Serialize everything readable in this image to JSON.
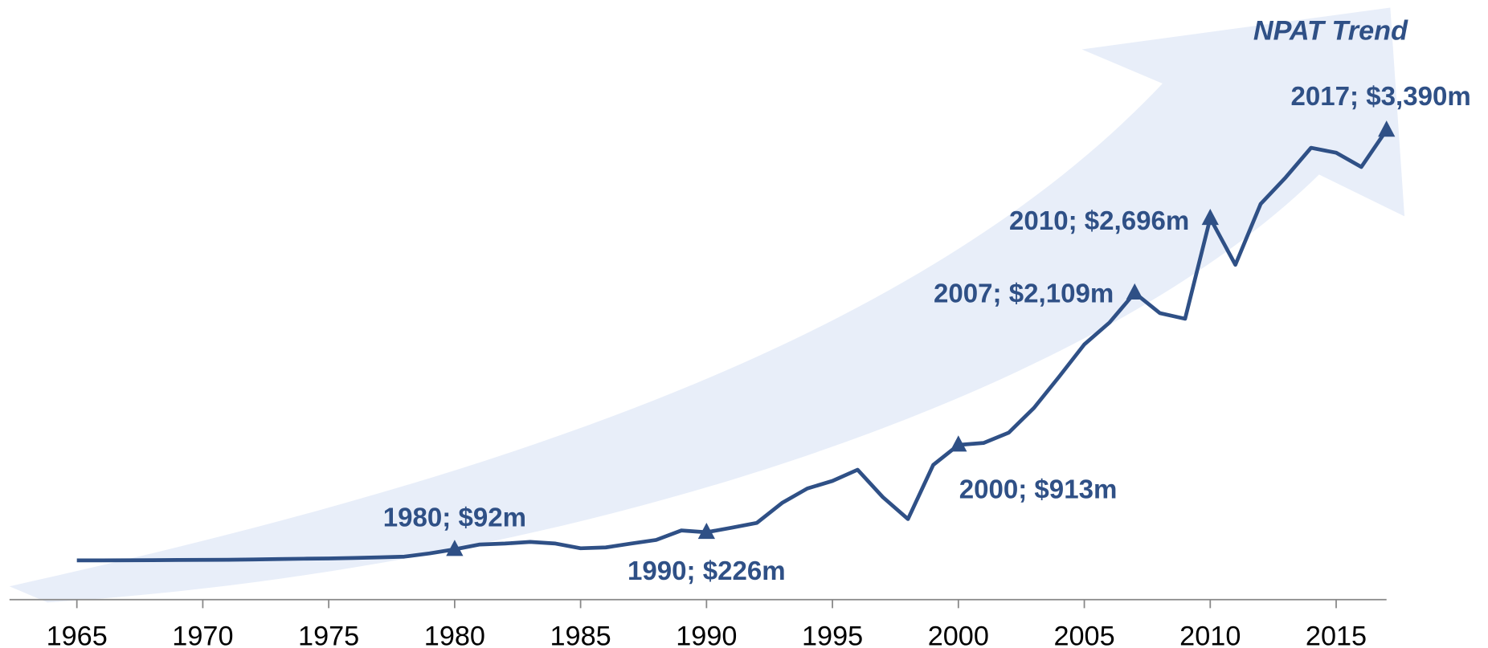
{
  "chart_data": {
    "type": "line",
    "title": "NPAT Trend",
    "x": [
      1965,
      1966,
      1967,
      1968,
      1969,
      1970,
      1971,
      1972,
      1973,
      1974,
      1975,
      1976,
      1977,
      1978,
      1979,
      1980,
      1981,
      1982,
      1983,
      1984,
      1985,
      1986,
      1987,
      1988,
      1989,
      1990,
      1991,
      1992,
      1993,
      1994,
      1995,
      1996,
      1997,
      1998,
      1999,
      2000,
      2001,
      2002,
      2003,
      2004,
      2005,
      2006,
      2007,
      2008,
      2009,
      2010,
      2011,
      2012,
      2013,
      2014,
      2015,
      2016,
      2017
    ],
    "series": [
      {
        "name": "NPAT",
        "color": "#2f5086",
        "values": [
          5,
          5,
          6,
          7,
          8,
          9,
          10,
          12,
          15,
          18,
          20,
          24,
          28,
          34,
          60,
          92,
          130,
          137,
          150,
          137,
          100,
          107,
          137,
          166,
          240,
          226,
          262,
          300,
          457,
          570,
          630,
          718,
          502,
          330,
          756,
          913,
          928,
          1010,
          1204,
          1450,
          1704,
          1875,
          2109,
          1950,
          1905,
          2696,
          2330,
          2808,
          3018,
          3250,
          3211,
          3099,
          3390
        ]
      }
    ],
    "annotations": [
      {
        "text": "1980; $92m",
        "x": 1980
      },
      {
        "text": "1990; $226m",
        "x": 1990
      },
      {
        "text": "2000; $913m",
        "x": 2000
      },
      {
        "text": "2007; $2,109m",
        "x": 2007
      },
      {
        "text": "2010; $2,696m",
        "x": 2010
      },
      {
        "text": "2017; $3,390m",
        "x": 2017
      }
    ],
    "xlim": [
      1965,
      2017
    ],
    "xticks": [
      1965,
      1970,
      1975,
      1980,
      1985,
      1990,
      1995,
      2000,
      2005,
      2010,
      2015
    ],
    "ylim": [
      0,
      4000
    ]
  }
}
